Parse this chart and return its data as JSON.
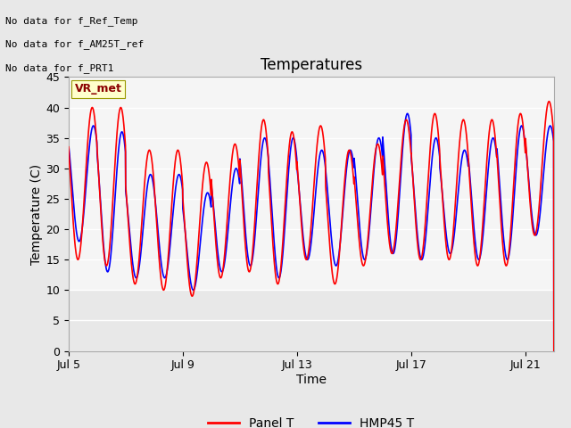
{
  "title": "Temperatures",
  "xlabel": "Time",
  "ylabel": "Temperature (C)",
  "ylim": [
    0,
    45
  ],
  "xlim_days": [
    0,
    17
  ],
  "xtick_positions": [
    0,
    4,
    8,
    12,
    16
  ],
  "xtick_labels": [
    "Jul 5",
    "Jul 9",
    "Jul 13",
    "Jul 17",
    "Jul 21"
  ],
  "ytick_positions": [
    0,
    5,
    10,
    15,
    20,
    25,
    30,
    35,
    40,
    45
  ],
  "panel_color": "#ff0000",
  "hmp45_color": "#0000ff",
  "line_width": 1.2,
  "bg_color": "#e8e8e8",
  "active_band_color": "#f5f5f5",
  "active_band_ymin": 10,
  "active_band_ymax": 45,
  "annotations": [
    "No data for f_Ref_Temp",
    "No data for f_AM25T_ref",
    "No data for f_PRT1"
  ],
  "legend_labels": [
    "Panel T",
    "HMP45 T"
  ],
  "legend_colors": [
    "#ff0000",
    "#0000ff"
  ],
  "vr_met_label": "VR_met",
  "num_days": 17,
  "points_per_day": 144,
  "panel_peaks": [
    40,
    40,
    33,
    33,
    31,
    34,
    38,
    36,
    37,
    33,
    34,
    38,
    39,
    38,
    38,
    39,
    41
  ],
  "panel_troughs": [
    15,
    14,
    11,
    10,
    9,
    12,
    13,
    11,
    15,
    11,
    14,
    16,
    15,
    15,
    14,
    14,
    19
  ],
  "hmp45_peaks": [
    37,
    36,
    29,
    29,
    26,
    30,
    35,
    35,
    33,
    33,
    35,
    39,
    35,
    33,
    35,
    37,
    37
  ],
  "hmp45_troughs": [
    18,
    13,
    12,
    12,
    10,
    13,
    14,
    12,
    15,
    14,
    15,
    16,
    15,
    16,
    15,
    15,
    19
  ]
}
